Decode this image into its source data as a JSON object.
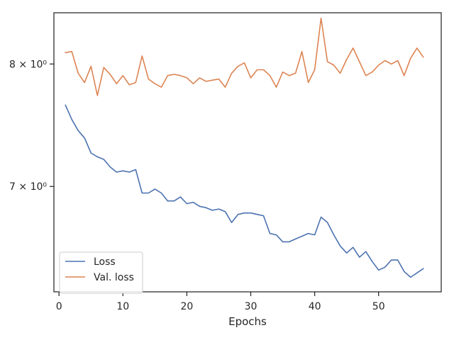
{
  "chart_data": {
    "type": "line",
    "xlabel": "Epochs",
    "ylabel": "",
    "yscale": "log",
    "xlim": [
      -0.8,
      59.8
    ],
    "ylim": [
      6.24,
      8.46
    ],
    "xticks": [
      0,
      10,
      20,
      30,
      40,
      50
    ],
    "yticks": [
      {
        "value": 7,
        "label": "7 × 10⁰"
      },
      {
        "value": 8,
        "label": "8 × 10⁰"
      }
    ],
    "grid": false,
    "legend": {
      "placement": "lower-left"
    },
    "x": [
      1,
      2,
      3,
      4,
      5,
      6,
      7,
      8,
      9,
      10,
      11,
      12,
      13,
      14,
      15,
      16,
      17,
      18,
      19,
      20,
      21,
      22,
      23,
      24,
      25,
      26,
      27,
      28,
      29,
      30,
      31,
      32,
      33,
      34,
      35,
      36,
      37,
      38,
      39,
      40,
      41,
      42,
      43,
      44,
      45,
      46,
      47,
      48,
      49,
      50,
      51,
      52,
      53,
      54,
      55,
      56,
      57
    ],
    "series": [
      {
        "name": "Loss",
        "color": "#4c72b0",
        "values": [
          7.65,
          7.53,
          7.44,
          7.38,
          7.26,
          7.23,
          7.21,
          7.15,
          7.11,
          7.12,
          7.11,
          7.13,
          6.95,
          6.95,
          6.98,
          6.95,
          6.89,
          6.89,
          6.92,
          6.87,
          6.88,
          6.85,
          6.84,
          6.82,
          6.83,
          6.81,
          6.73,
          6.79,
          6.8,
          6.8,
          6.79,
          6.78,
          6.65,
          6.64,
          6.59,
          6.59,
          6.61,
          6.63,
          6.65,
          6.64,
          6.77,
          6.73,
          6.64,
          6.56,
          6.51,
          6.55,
          6.48,
          6.52,
          6.45,
          6.39,
          6.41,
          6.46,
          6.46,
          6.38,
          6.34,
          6.37,
          6.4
        ]
      },
      {
        "name": "Val. loss",
        "color": "#dd8452",
        "values": [
          8.1,
          8.11,
          7.92,
          7.84,
          7.98,
          7.73,
          7.97,
          7.91,
          7.83,
          7.9,
          7.82,
          7.84,
          8.07,
          7.87,
          7.83,
          7.8,
          7.9,
          7.91,
          7.9,
          7.88,
          7.83,
          7.88,
          7.85,
          7.86,
          7.87,
          7.8,
          7.92,
          7.98,
          8.01,
          7.88,
          7.95,
          7.95,
          7.9,
          7.8,
          7.93,
          7.9,
          7.92,
          8.11,
          7.84,
          7.95,
          8.41,
          8.02,
          7.99,
          7.92,
          8.04,
          8.14,
          8.02,
          7.9,
          7.93,
          7.99,
          8.03,
          8.0,
          8.03,
          7.9,
          8.05,
          8.14,
          8.06
        ]
      }
    ]
  }
}
